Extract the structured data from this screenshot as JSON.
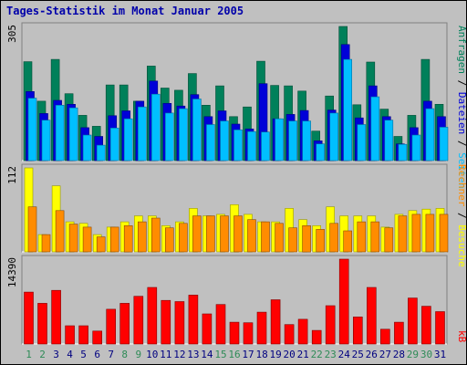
{
  "page": {
    "title": "Tages-Statistik im Monat Januar 2005"
  },
  "colors": {
    "anfragen": "#00805a",
    "dateien": "#0000d8",
    "seiten": "#00bfff",
    "besuche": "#ffff00",
    "rechner": "#ff8c00",
    "kb": "#ff0000",
    "weekday": "#008000",
    "weekend": "#2e8b57",
    "label_kb": "#ff0000"
  },
  "chart_data": [
    {
      "type": "bar",
      "panel": "top",
      "ymax": 305,
      "ytick_label": "305",
      "ylabel_parts": [
        "Anfragen",
        "Dateien",
        "Seiten"
      ],
      "categories": [
        "1",
        "2",
        "3",
        "4",
        "5",
        "6",
        "7",
        "8",
        "9",
        "10",
        "11",
        "12",
        "13",
        "14",
        "15",
        "16",
        "17",
        "18",
        "19",
        "20",
        "21",
        "22",
        "23",
        "24",
        "25",
        "26",
        "27",
        "28",
        "29",
        "30",
        "31"
      ],
      "series": [
        {
          "name": "Anfragen",
          "values": [
            225,
            135,
            230,
            152,
            103,
            78,
            172,
            172,
            135,
            215,
            165,
            160,
            198,
            126,
            170,
            100,
            122,
            226,
            171,
            170,
            158,
            67,
            147,
            305,
            127,
            224,
            117,
            55,
            103,
            230,
            128
          ]
        },
        {
          "name": "Dateien",
          "values": [
            157,
            107,
            137,
            128,
            75,
            55,
            102,
            113,
            135,
            181,
            130,
            124,
            150,
            100,
            113,
            83,
            72,
            175,
            95,
            105,
            114,
            45,
            115,
            264,
            97,
            170,
            100,
            38,
            75,
            135,
            100
          ]
        },
        {
          "name": "Seiten",
          "values": [
            142,
            92,
            126,
            120,
            58,
            35,
            74,
            95,
            122,
            151,
            108,
            118,
            140,
            82,
            90,
            70,
            66,
            65,
            95,
            90,
            90,
            38,
            108,
            230,
            82,
            145,
            92,
            37,
            58,
            118,
            76
          ]
        }
      ]
    },
    {
      "type": "bar",
      "panel": "middle",
      "ymax": 112,
      "ytick_label": "112",
      "ylabel_parts": [
        "Rechner",
        "Besuche"
      ],
      "categories": [
        "1",
        "2",
        "3",
        "4",
        "5",
        "6",
        "7",
        "8",
        "9",
        "10",
        "11",
        "12",
        "13",
        "14",
        "15",
        "16",
        "17",
        "18",
        "19",
        "20",
        "21",
        "22",
        "23",
        "24",
        "25",
        "26",
        "27",
        "28",
        "29",
        "30",
        "31"
      ],
      "series": [
        {
          "name": "Besuche",
          "values": [
            112,
            23,
            88,
            40,
            38,
            23,
            33,
            40,
            48,
            48,
            35,
            40,
            58,
            48,
            50,
            63,
            50,
            40,
            40,
            58,
            43,
            35,
            60,
            48,
            48,
            48,
            33,
            50,
            55,
            57,
            58
          ]
        },
        {
          "name": "Rechner",
          "values": [
            60,
            23,
            55,
            37,
            33,
            20,
            33,
            35,
            40,
            45,
            32,
            38,
            48,
            48,
            48,
            48,
            43,
            40,
            38,
            32,
            35,
            30,
            38,
            28,
            40,
            40,
            32,
            48,
            50,
            50,
            50
          ]
        }
      ]
    },
    {
      "type": "bar",
      "panel": "bottom",
      "ymax": 14390,
      "ytick_label": "14390",
      "ylabel": "kB",
      "categories": [
        "1",
        "2",
        "3",
        "4",
        "5",
        "6",
        "7",
        "8",
        "9",
        "10",
        "11",
        "12",
        "13",
        "14",
        "15",
        "16",
        "17",
        "18",
        "19",
        "20",
        "21",
        "22",
        "23",
        "24",
        "25",
        "26",
        "27",
        "28",
        "29",
        "30",
        "31"
      ],
      "series": [
        {
          "name": "kB",
          "values": [
            8800,
            6900,
            9100,
            3100,
            3100,
            2200,
            5900,
            6900,
            8100,
            9600,
            7400,
            7200,
            8300,
            5100,
            6700,
            3700,
            3600,
            5400,
            7500,
            3300,
            4200,
            2300,
            6500,
            14390,
            4600,
            9600,
            2500,
            3700,
            7800,
            6400,
            5500
          ]
        }
      ]
    }
  ],
  "xaxis": {
    "labels": [
      "1",
      "2",
      "3",
      "4",
      "5",
      "6",
      "7",
      "8",
      "9",
      "10",
      "11",
      "12",
      "13",
      "14",
      "15",
      "16",
      "17",
      "18",
      "19",
      "20",
      "21",
      "22",
      "23",
      "24",
      "25",
      "26",
      "27",
      "28",
      "29",
      "30",
      "31"
    ],
    "weekend_days": [
      1,
      2,
      8,
      9,
      15,
      16,
      22,
      23,
      29,
      30
    ]
  }
}
